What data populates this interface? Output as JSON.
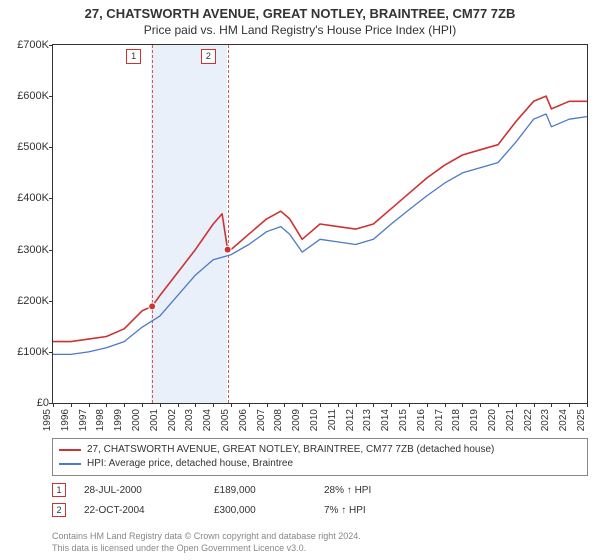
{
  "title": "27, CHATSWORTH AVENUE, GREAT NOTLEY, BRAINTREE, CM77 7ZB",
  "subtitle": "Price paid vs. HM Land Registry's House Price Index (HPI)",
  "chart": {
    "type": "line",
    "background_color": "#ffffff",
    "axis_color": "#333333",
    "y": {
      "min": 0,
      "max": 700,
      "ticks": [
        0,
        100,
        200,
        300,
        400,
        500,
        600,
        700
      ],
      "tick_labels": [
        "£0",
        "£100K",
        "£200K",
        "£300K",
        "£400K",
        "£500K",
        "£600K",
        "£700K"
      ],
      "label_fontsize": 11
    },
    "x": {
      "min": 1995,
      "max": 2025,
      "ticks": [
        1995,
        1996,
        1997,
        1998,
        1999,
        2000,
        2001,
        2002,
        2003,
        2004,
        2005,
        2006,
        2007,
        2008,
        2009,
        2010,
        2011,
        2012,
        2013,
        2014,
        2015,
        2016,
        2017,
        2018,
        2019,
        2020,
        2021,
        2022,
        2023,
        2024,
        2025
      ],
      "label_fontsize": 10
    },
    "marker_band": {
      "from": 2000.5,
      "to": 2004.8,
      "color": "#eaf0fa"
    },
    "markers": [
      {
        "id": "1",
        "x": 2000.57,
        "label_x": 1999.5
      },
      {
        "id": "2",
        "x": 2004.81,
        "label_x": 2003.7
      }
    ],
    "series": [
      {
        "name": "property",
        "label": "27, CHATSWORTH AVENUE, GREAT NOTLEY, BRAINTREE, CM77 7ZB (detached house)",
        "color": "#cc3333",
        "line_width": 1.6,
        "data": [
          [
            1995,
            120
          ],
          [
            1996,
            120
          ],
          [
            1997,
            125
          ],
          [
            1998,
            130
          ],
          [
            1999,
            145
          ],
          [
            2000,
            180
          ],
          [
            2000.57,
            189
          ],
          [
            2001,
            210
          ],
          [
            2002,
            255
          ],
          [
            2003,
            300
          ],
          [
            2004,
            350
          ],
          [
            2004.5,
            370
          ],
          [
            2004.81,
            300
          ],
          [
            2005,
            300
          ],
          [
            2006,
            330
          ],
          [
            2007,
            360
          ],
          [
            2007.8,
            375
          ],
          [
            2008.3,
            360
          ],
          [
            2009,
            320
          ],
          [
            2010,
            350
          ],
          [
            2011,
            345
          ],
          [
            2012,
            340
          ],
          [
            2013,
            350
          ],
          [
            2014,
            380
          ],
          [
            2015,
            410
          ],
          [
            2016,
            440
          ],
          [
            2017,
            465
          ],
          [
            2018,
            485
          ],
          [
            2019,
            495
          ],
          [
            2020,
            505
          ],
          [
            2021,
            550
          ],
          [
            2022,
            590
          ],
          [
            2022.7,
            600
          ],
          [
            2023,
            575
          ],
          [
            2024,
            590
          ],
          [
            2025,
            590
          ]
        ]
      },
      {
        "name": "hpi",
        "label": "HPI: Average price, detached house, Braintree",
        "color": "#4d79c7",
        "line_width": 1.3,
        "data": [
          [
            1995,
            95
          ],
          [
            1996,
            95
          ],
          [
            1997,
            100
          ],
          [
            1998,
            108
          ],
          [
            1999,
            120
          ],
          [
            2000,
            148
          ],
          [
            2001,
            170
          ],
          [
            2002,
            210
          ],
          [
            2003,
            250
          ],
          [
            2004,
            280
          ],
          [
            2005,
            290
          ],
          [
            2006,
            310
          ],
          [
            2007,
            335
          ],
          [
            2007.8,
            345
          ],
          [
            2008.3,
            330
          ],
          [
            2009,
            295
          ],
          [
            2010,
            320
          ],
          [
            2011,
            315
          ],
          [
            2012,
            310
          ],
          [
            2013,
            320
          ],
          [
            2014,
            350
          ],
          [
            2015,
            378
          ],
          [
            2016,
            405
          ],
          [
            2017,
            430
          ],
          [
            2018,
            450
          ],
          [
            2019,
            460
          ],
          [
            2020,
            470
          ],
          [
            2021,
            510
          ],
          [
            2022,
            555
          ],
          [
            2022.7,
            565
          ],
          [
            2023,
            540
          ],
          [
            2024,
            555
          ],
          [
            2025,
            560
          ]
        ]
      }
    ],
    "sale_points": [
      {
        "x": 2000.57,
        "y": 189
      },
      {
        "x": 2004.81,
        "y": 300
      }
    ]
  },
  "legend": {
    "items": [
      {
        "series": "property"
      },
      {
        "series": "hpi"
      }
    ]
  },
  "sales": [
    {
      "marker": "1",
      "date": "28-JUL-2000",
      "price": "£189,000",
      "delta": "28% ↑ HPI"
    },
    {
      "marker": "2",
      "date": "22-OCT-2004",
      "price": "£300,000",
      "delta": "7% ↑ HPI"
    }
  ],
  "footer_line1": "Contains HM Land Registry data © Crown copyright and database right 2024.",
  "footer_line2": "This data is licensed under the Open Government Licence v3.0."
}
